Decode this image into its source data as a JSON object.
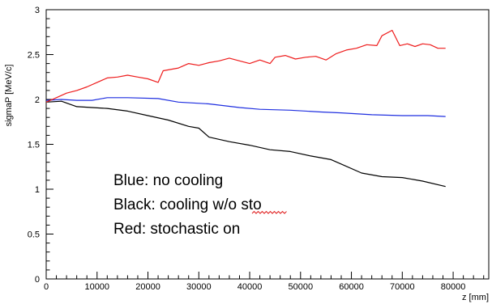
{
  "chart_data": {
    "type": "line",
    "xlabel": "z [mm]",
    "ylabel": "sigmaP [MeV/c]",
    "xlim": [
      0,
      87000
    ],
    "ylim": [
      0,
      3
    ],
    "x_tick_labels": [
      "0",
      "10000",
      "20000",
      "30000",
      "40000",
      "50000",
      "60000",
      "70000",
      "80000"
    ],
    "y_tick_labels": [
      "0",
      "0.5",
      "1",
      "1.5",
      "2",
      "2.5",
      "3"
    ],
    "annotations": [
      "Blue: no cooling",
      "Black: cooling w/o sto",
      "Red: stochastic on"
    ],
    "colors": {
      "blue": "#1f2fe0",
      "black": "#000000",
      "red": "#ee1c1c"
    },
    "series": [
      {
        "color": "#1f2fe0",
        "x": [
          0,
          3000,
          6000,
          9000,
          12000,
          16000,
          22000,
          26000,
          32000,
          38000,
          42000,
          48000,
          54000,
          58000,
          64000,
          70000,
          75000,
          78500
        ],
        "y": [
          1.99,
          2.0,
          1.99,
          1.99,
          2.02,
          2.02,
          2.01,
          1.97,
          1.95,
          1.91,
          1.89,
          1.88,
          1.86,
          1.85,
          1.83,
          1.82,
          1.82,
          1.81
        ]
      },
      {
        "color": "#000000",
        "x": [
          0,
          3000,
          6000,
          9000,
          12000,
          16000,
          20000,
          24000,
          28000,
          30000,
          32000,
          36000,
          40000,
          44000,
          48000,
          52000,
          56000,
          58000,
          62000,
          66000,
          70000,
          74000,
          78500
        ],
        "y": [
          1.97,
          1.98,
          1.92,
          1.91,
          1.9,
          1.87,
          1.82,
          1.77,
          1.7,
          1.68,
          1.58,
          1.53,
          1.49,
          1.44,
          1.42,
          1.37,
          1.33,
          1.28,
          1.18,
          1.14,
          1.13,
          1.09,
          1.03
        ]
      },
      {
        "color": "#ee1c1c",
        "x": [
          0,
          2000,
          4000,
          6000,
          8000,
          10000,
          12000,
          14000,
          16000,
          18000,
          20000,
          22000,
          23000,
          26000,
          28000,
          30000,
          32000,
          34000,
          36000,
          38000,
          40000,
          42000,
          44000,
          45000,
          47000,
          49000,
          51000,
          53000,
          55000,
          57000,
          59000,
          61000,
          63000,
          65000,
          66000,
          68000,
          69500,
          71000,
          72500,
          74000,
          75500,
          77000,
          78500
        ],
        "y": [
          1.97,
          2.02,
          2.07,
          2.1,
          2.14,
          2.19,
          2.24,
          2.25,
          2.27,
          2.25,
          2.23,
          2.19,
          2.32,
          2.35,
          2.4,
          2.38,
          2.41,
          2.43,
          2.46,
          2.43,
          2.4,
          2.44,
          2.4,
          2.47,
          2.49,
          2.45,
          2.47,
          2.48,
          2.44,
          2.51,
          2.55,
          2.57,
          2.61,
          2.6,
          2.71,
          2.77,
          2.6,
          2.62,
          2.59,
          2.62,
          2.61,
          2.57,
          2.57
        ]
      }
    ]
  }
}
